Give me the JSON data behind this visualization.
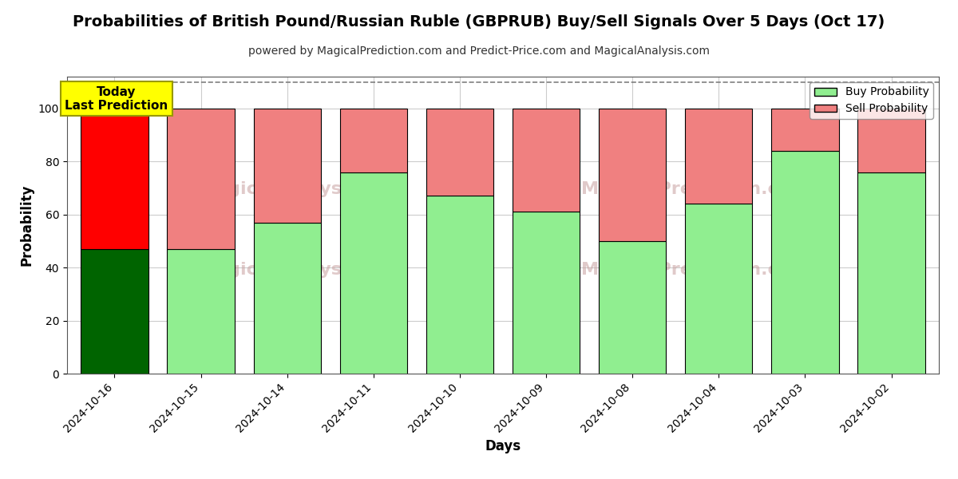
{
  "title": "Probabilities of British Pound/Russian Ruble (GBPRUB) Buy/Sell Signals Over 5 Days (Oct 17)",
  "subtitle": "powered by MagicalPrediction.com and Predict-Price.com and MagicalAnalysis.com",
  "xlabel": "Days",
  "ylabel": "Probability",
  "categories": [
    "2024-10-16",
    "2024-10-15",
    "2024-10-14",
    "2024-10-11",
    "2024-10-10",
    "2024-10-09",
    "2024-10-08",
    "2024-10-04",
    "2024-10-03",
    "2024-10-02"
  ],
  "buy_values": [
    47,
    47,
    57,
    76,
    67,
    61,
    50,
    64,
    84,
    76
  ],
  "sell_values": [
    53,
    53,
    43,
    24,
    33,
    39,
    50,
    36,
    16,
    24
  ],
  "today_buy_color": "#006400",
  "today_sell_color": "#FF0000",
  "buy_color": "#90EE90",
  "sell_color": "#F08080",
  "bar_edge_color": "#000000",
  "today_label_bg": "#FFFF00",
  "today_label_text": "Today\nLast Prediction",
  "ylim": [
    0,
    112
  ],
  "yticks": [
    0,
    20,
    40,
    60,
    80,
    100
  ],
  "dashed_line_y": 110,
  "legend_buy_label": "Buy Probability",
  "legend_sell_label": "Sell Probability",
  "background_color": "#ffffff",
  "grid_color": "#cccccc",
  "title_fontsize": 14,
  "subtitle_fontsize": 10,
  "axis_label_fontsize": 12,
  "tick_fontsize": 10
}
